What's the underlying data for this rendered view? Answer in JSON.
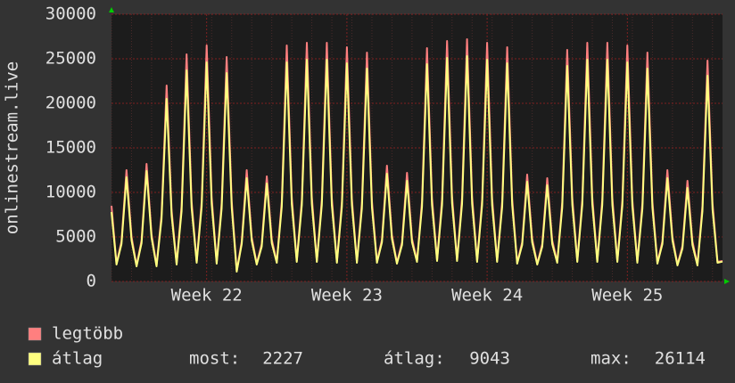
{
  "chart_data": {
    "type": "line",
    "y_label": "onlinestream.live",
    "categories": [
      null,
      null,
      null,
      null,
      null,
      null,
      null,
      null,
      null,
      null,
      null,
      null,
      null,
      null,
      null,
      null,
      null,
      null,
      null,
      "Week 22",
      null,
      null,
      null,
      null,
      null,
      null,
      null,
      null,
      null,
      null,
      null,
      null,
      null,
      null,
      null,
      null,
      null,
      null,
      null,
      null,
      null,
      null,
      null,
      null,
      null,
      null,
      null,
      "Week 23",
      null,
      null,
      null,
      null,
      null,
      null,
      null,
      null,
      null,
      null,
      null,
      null,
      null,
      null,
      null,
      null,
      null,
      null,
      null,
      null,
      null,
      null,
      null,
      null,
      null,
      null,
      null,
      "Week 24",
      null,
      null,
      null,
      null,
      null,
      null,
      null,
      null,
      null,
      null,
      null,
      null,
      null,
      null,
      null,
      null,
      null,
      null,
      null,
      null,
      null,
      null,
      null,
      null,
      null,
      null,
      null,
      "Week 25",
      null,
      null,
      null,
      null,
      null,
      null,
      null,
      null,
      null,
      null,
      null,
      null,
      null,
      null,
      null,
      null,
      null,
      null,
      null
    ],
    "series": [
      {
        "name": "legtöbb",
        "color": "#ff7f7f",
        "values": [
          8500,
          2000,
          4500,
          12500,
          5000,
          1800,
          4600,
          13200,
          5300,
          1800,
          7500,
          22000,
          8000,
          2000,
          8500,
          25500,
          9000,
          2200,
          9000,
          26500,
          9500,
          2100,
          8800,
          25200,
          9000,
          1200,
          4500,
          12500,
          5000,
          2000,
          4200,
          11800,
          4700,
          2200,
          9000,
          26500,
          9500,
          2300,
          9200,
          26800,
          9500,
          2300,
          9200,
          26800,
          9400,
          2200,
          9000,
          26300,
          9300,
          2200,
          8800,
          25700,
          9000,
          2200,
          4700,
          13000,
          5200,
          2100,
          4400,
          12200,
          4800,
          2300,
          9000,
          26200,
          9400,
          2400,
          9300,
          27000,
          9600,
          2400,
          9400,
          27200,
          9500,
          2300,
          9200,
          26800,
          9400,
          2300,
          9000,
          26300,
          9300,
          2100,
          4400,
          12000,
          4800,
          2000,
          4200,
          11600,
          4600,
          2200,
          8900,
          26000,
          9400,
          2300,
          9200,
          26800,
          9500,
          2300,
          9200,
          26800,
          9400,
          2300,
          9100,
          26500,
          9200,
          2200,
          8800,
          25700,
          9000,
          2100,
          4500,
          12500,
          5000,
          1900,
          4000,
          11300,
          4500,
          1900,
          8500,
          24800,
          8800,
          2200,
          2300
        ]
      },
      {
        "name": "átlag",
        "color": "#ffff80",
        "values": [
          7800,
          1900,
          4200,
          11700,
          4600,
          1700,
          4300,
          12400,
          4900,
          1700,
          7000,
          20500,
          7400,
          1900,
          7900,
          23700,
          8300,
          2100,
          8400,
          24600,
          8700,
          2000,
          8200,
          23400,
          8300,
          1100,
          4200,
          11600,
          4600,
          1900,
          3900,
          11000,
          4300,
          2100,
          8400,
          24600,
          8700,
          2200,
          8600,
          24900,
          8700,
          2200,
          8600,
          24900,
          8600,
          2100,
          8400,
          24500,
          8600,
          2100,
          8200,
          23900,
          8300,
          2100,
          4400,
          12100,
          4800,
          2000,
          4100,
          11300,
          4400,
          2200,
          8400,
          24400,
          8600,
          2300,
          8600,
          25100,
          8800,
          2300,
          8700,
          25300,
          8700,
          2200,
          8600,
          24900,
          8600,
          2200,
          8400,
          24500,
          8600,
          2000,
          4100,
          11200,
          4400,
          1900,
          3900,
          10800,
          4200,
          2100,
          8300,
          24200,
          8600,
          2200,
          8600,
          24900,
          8700,
          2200,
          8600,
          24900,
          8600,
          2200,
          8500,
          24600,
          8500,
          2100,
          8200,
          23900,
          8300,
          2000,
          4200,
          11600,
          4600,
          1800,
          3700,
          10500,
          4100,
          1800,
          7900,
          23100,
          8100,
          2100,
          2227
        ]
      }
    ],
    "ylim": [
      0,
      30000
    ],
    "yticks": [
      0,
      5000,
      10000,
      15000,
      20000,
      25000,
      30000
    ],
    "grid": true,
    "stats": [
      {
        "label": "most:",
        "value": 2227
      },
      {
        "label": "átlag:",
        "value": 9043
      },
      {
        "label": "max:",
        "value": 26114
      }
    ]
  }
}
